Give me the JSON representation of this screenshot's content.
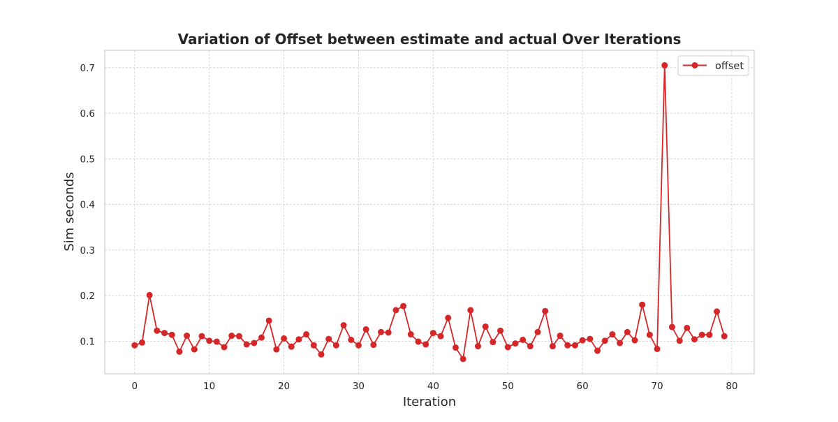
{
  "chart_data": {
    "type": "line",
    "title": "Variation of Offset between estimate and actual Over Iterations",
    "xlabel": "Iteration",
    "ylabel": "Sim seconds",
    "xlim": [
      -4,
      83
    ],
    "ylim": [
      0.0285,
      0.738
    ],
    "x_ticks": [
      0,
      10,
      20,
      30,
      40,
      50,
      60,
      70,
      80
    ],
    "y_ticks": [
      0.1,
      0.2,
      0.3,
      0.4,
      0.5,
      0.6,
      0.7
    ],
    "grid": true,
    "legend_position": "top-right",
    "series": [
      {
        "name": "offset",
        "color": "#d62728",
        "marker": "circle",
        "x": [
          0,
          1,
          2,
          3,
          4,
          5,
          6,
          7,
          8,
          9,
          10,
          11,
          12,
          13,
          14,
          15,
          16,
          17,
          18,
          19,
          20,
          21,
          22,
          23,
          24,
          25,
          26,
          27,
          28,
          29,
          30,
          31,
          32,
          33,
          34,
          35,
          36,
          37,
          38,
          39,
          40,
          41,
          42,
          43,
          44,
          45,
          46,
          47,
          48,
          49,
          50,
          51,
          52,
          53,
          54,
          55,
          56,
          57,
          58,
          59,
          60,
          61,
          62,
          63,
          64,
          65,
          66,
          67,
          68,
          69,
          70,
          71,
          72,
          73,
          74,
          75,
          76,
          77,
          78,
          79
        ],
        "values": [
          0.091,
          0.097,
          0.201,
          0.123,
          0.118,
          0.114,
          0.077,
          0.112,
          0.082,
          0.111,
          0.101,
          0.099,
          0.087,
          0.112,
          0.111,
          0.093,
          0.096,
          0.108,
          0.145,
          0.082,
          0.106,
          0.088,
          0.104,
          0.115,
          0.091,
          0.071,
          0.105,
          0.091,
          0.135,
          0.103,
          0.091,
          0.126,
          0.092,
          0.12,
          0.119,
          0.168,
          0.177,
          0.115,
          0.099,
          0.093,
          0.118,
          0.111,
          0.151,
          0.086,
          0.061,
          0.168,
          0.089,
          0.132,
          0.098,
          0.123,
          0.087,
          0.095,
          0.103,
          0.089,
          0.12,
          0.166,
          0.089,
          0.112,
          0.091,
          0.091,
          0.102,
          0.105,
          0.079,
          0.101,
          0.115,
          0.096,
          0.12,
          0.102,
          0.18,
          0.114,
          0.083,
          0.705,
          0.131,
          0.101,
          0.129,
          0.104,
          0.114,
          0.114,
          0.165,
          0.111
        ]
      }
    ]
  }
}
